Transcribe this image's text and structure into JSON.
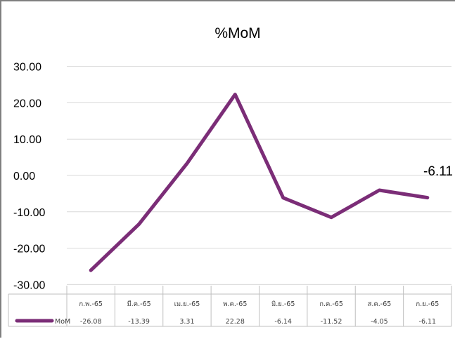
{
  "chart_data": {
    "type": "line",
    "title": "%MoM",
    "categories": [
      "ก.พ.-65",
      "มี.ค.-65",
      "เม.ย.-65",
      "พ.ค.-65",
      "มิ.ย.-65",
      "ก.ค.-65",
      "ส.ค.-65",
      "ก.ย.-65"
    ],
    "series": [
      {
        "name": "MoM",
        "values": [
          -26.08,
          -13.39,
          3.31,
          22.28,
          -6.14,
          -11.52,
          -4.05,
          -6.11
        ],
        "value_labels": [
          "-26.08",
          "-13.39",
          "3.31",
          "22.28",
          "-6.14",
          "-11.52",
          "-4.05",
          "-6.11"
        ],
        "color": "#7b2d77"
      }
    ],
    "y_ticks": [
      "30.00",
      "20.00",
      "10.00",
      "0.00",
      "-10.00",
      "-20.00",
      "-30.00"
    ],
    "ylim": [
      -30,
      30
    ],
    "data_label": "-6.11",
    "grid": true,
    "legend": "data-table",
    "xlabel": "",
    "ylabel": ""
  }
}
